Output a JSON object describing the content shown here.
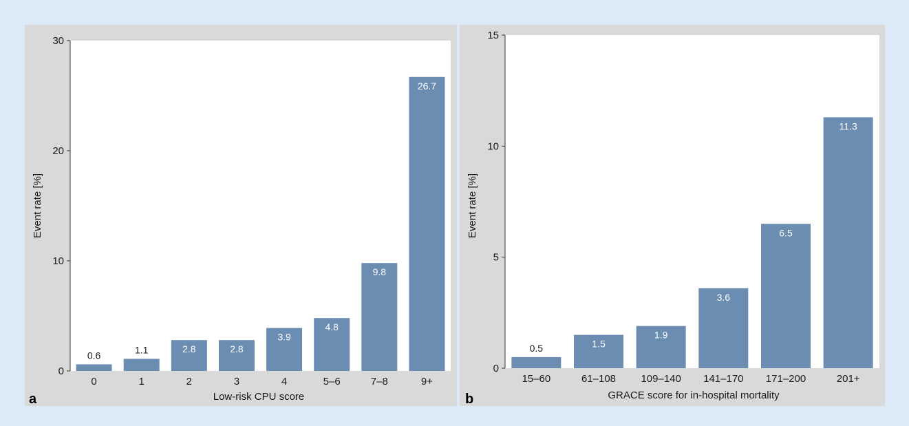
{
  "chart_data": [
    {
      "type": "bar",
      "panel_label": "a",
      "categories": [
        "0",
        "1",
        "2",
        "3",
        "4",
        "5–6",
        "7–8",
        "9+"
      ],
      "values": [
        0.6,
        1.1,
        2.8,
        2.8,
        3.9,
        4.8,
        9.8,
        26.7
      ],
      "value_labels": [
        "0.6",
        "1.1",
        "2.8",
        "2.8",
        "3.9",
        "4.8",
        "9.8",
        "26.7"
      ],
      "xlabel": "Low-risk CPU score",
      "ylabel": "Event rate [%]",
      "ylim": [
        0,
        30
      ],
      "yticks": [
        "0",
        "10",
        "20",
        "30"
      ],
      "bar_color": "#6b8db2",
      "grid": false
    },
    {
      "type": "bar",
      "panel_label": "b",
      "categories": [
        "15–60",
        "61–108",
        "109–140",
        "141–170",
        "171–200",
        "201+"
      ],
      "values": [
        0.5,
        1.5,
        1.9,
        3.6,
        6.5,
        11.3
      ],
      "value_labels": [
        "0.5",
        "1.5",
        "1.9",
        "3.6",
        "6.5",
        "11.3"
      ],
      "xlabel": "GRACE score for in-hospital mortality",
      "ylabel": "Event rate [%]",
      "ylim": [
        0,
        15
      ],
      "yticks": [
        "0",
        "5",
        "10",
        "15"
      ],
      "bar_color": "#6b8db2",
      "grid": false
    }
  ]
}
